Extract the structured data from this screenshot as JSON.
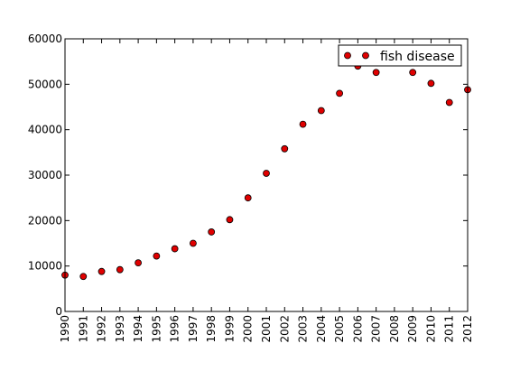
{
  "chart_data": {
    "type": "scatter",
    "title": "",
    "xlabel": "",
    "ylabel": "",
    "x": [
      1990,
      1991,
      1992,
      1993,
      1994,
      1995,
      1996,
      1997,
      1998,
      1999,
      2000,
      2001,
      2002,
      2003,
      2004,
      2005,
      2006,
      2007,
      2008,
      2009,
      2010,
      2011,
      2012
    ],
    "xlim": [
      1990,
      2012
    ],
    "ylim": [
      0,
      60000
    ],
    "x_ticks": [
      "1990",
      "1991",
      "1992",
      "1993",
      "1994",
      "1995",
      "1996",
      "1997",
      "1998",
      "1999",
      "2000",
      "2001",
      "2002",
      "2003",
      "2004",
      "2005",
      "2006",
      "2007",
      "2008",
      "2009",
      "2010",
      "2011",
      "2012"
    ],
    "y_ticks": [
      "0",
      "10000",
      "20000",
      "30000",
      "40000",
      "50000",
      "60000"
    ],
    "series": [
      {
        "name": "fish disease",
        "color": "#e00000",
        "values": [
          8000,
          7700,
          8800,
          9200,
          10700,
          12200,
          13800,
          15000,
          17500,
          20200,
          25000,
          30400,
          35800,
          41200,
          44200,
          48000,
          54000,
          52600,
          null,
          52600,
          50200,
          46000,
          48800
        ]
      }
    ],
    "grid": false,
    "legend_position": "upper-right"
  }
}
